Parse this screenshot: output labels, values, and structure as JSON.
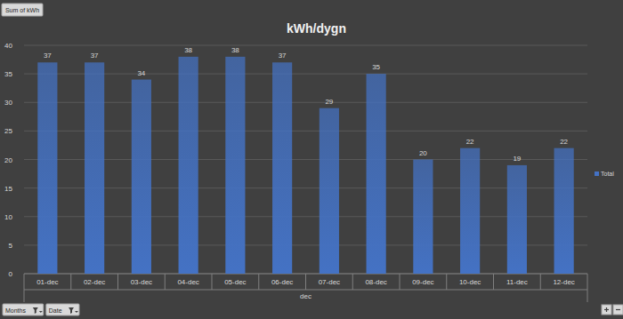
{
  "chart_data": {
    "type": "bar",
    "title": "kWh/dygn",
    "x_label": "dec",
    "categories": [
      "01-dec",
      "02-dec",
      "03-dec",
      "04-dec",
      "05-dec",
      "06-dec",
      "07-dec",
      "08-dec",
      "09-dec",
      "10-dec",
      "11-dec",
      "12-dec"
    ],
    "series": [
      {
        "name": "Total",
        "color": "#4472c4",
        "values": [
          37,
          37,
          34,
          38,
          38,
          37,
          29,
          35,
          20,
          22,
          19,
          22
        ]
      }
    ],
    "ylim": [
      0,
      40
    ],
    "yticks": [
      0,
      5,
      10,
      15,
      20,
      25,
      30,
      35,
      40
    ],
    "grid": true,
    "legend": "right",
    "data_labels": true
  },
  "pivot_buttons": {
    "value_field": "Sum of kWh",
    "axis_fields": [
      "Months",
      "Date"
    ]
  }
}
